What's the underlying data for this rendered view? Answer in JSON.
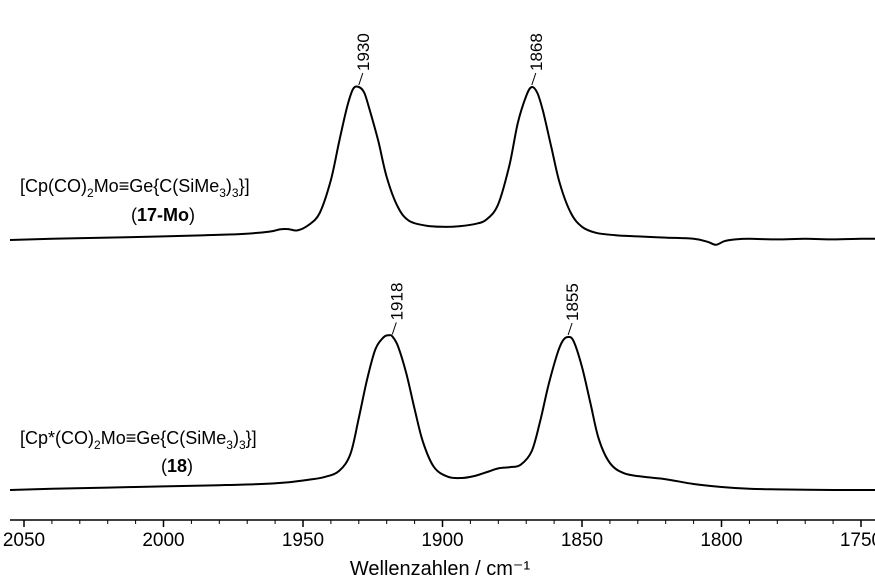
{
  "chart_data": {
    "type": "line",
    "xlabel": "Wellenzahlen / cm⁻¹",
    "xlim": [
      2055,
      1745
    ],
    "x_reversed": true,
    "x_ticks": [
      2050,
      2000,
      1950,
      1900,
      1850,
      1800,
      1750
    ],
    "x_tick_labels": [
      "2050",
      "2000",
      "1950",
      "1900",
      "1850",
      "1800",
      "1750"
    ],
    "y_axis_shown": false,
    "grid": false,
    "series": [
      {
        "name": "[Cp(CO)2Mo≡Ge{C(SiMe3)3}] (17-Mo)",
        "label_line1": {
          "a": "[Cp(CO)",
          "b": "2",
          "c": "Mo≡Ge{C(SiMe",
          "d": "3",
          "e": ")",
          "f": "3",
          "g": "}]"
        },
        "label_line2": {
          "open": "(",
          "bold": "17-Mo",
          "close": ")"
        },
        "peaks": [
          {
            "x": 1930,
            "label": "1930"
          },
          {
            "x": 1868,
            "label": "1868"
          }
        ],
        "x": [
          2055,
          2040,
          2020,
          2000,
          1985,
          1972,
          1962,
          1958,
          1955,
          1952,
          1948,
          1944,
          1940,
          1937,
          1934,
          1932,
          1930,
          1928,
          1926,
          1923,
          1920,
          1916,
          1912,
          1906,
          1900,
          1894,
          1888,
          1884,
          1880,
          1876,
          1873,
          1870,
          1868,
          1866,
          1864,
          1861,
          1858,
          1854,
          1850,
          1845,
          1838,
          1830,
          1820,
          1810,
          1805,
          1802,
          1799,
          1795,
          1790,
          1780,
          1770,
          1760,
          1750,
          1745
        ],
        "y": [
          0.0,
          0.02,
          0.04,
          0.06,
          0.08,
          0.1,
          0.14,
          0.18,
          0.18,
          0.16,
          0.25,
          0.45,
          1.0,
          1.65,
          2.25,
          2.52,
          2.55,
          2.45,
          2.15,
          1.65,
          1.05,
          0.55,
          0.32,
          0.24,
          0.22,
          0.23,
          0.27,
          0.35,
          0.6,
          1.25,
          1.95,
          2.4,
          2.55,
          2.45,
          2.15,
          1.55,
          0.95,
          0.45,
          0.22,
          0.12,
          0.08,
          0.06,
          0.04,
          0.02,
          -0.03,
          -0.08,
          -0.02,
          0.01,
          0.02,
          0.01,
          0.02,
          0.01,
          0.02,
          0.02
        ]
      },
      {
        "name": "[Cp*(CO)2Mo≡Ge{C(SiMe3)3}] (18)",
        "label_line1": {
          "a": "[Cp*(CO)",
          "b": "2",
          "c": "Mo≡Ge{C(SiMe",
          "d": "3",
          "e": ")",
          "f": "3",
          "g": "}]"
        },
        "label_line2": {
          "open": "(",
          "bold": "18",
          "close": ")"
        },
        "peaks": [
          {
            "x": 1918,
            "label": "1918"
          },
          {
            "x": 1855,
            "label": "1855"
          }
        ],
        "x": [
          2055,
          2040,
          2020,
          2000,
          1980,
          1965,
          1955,
          1948,
          1942,
          1937,
          1933,
          1930,
          1927,
          1924,
          1921,
          1919,
          1918,
          1916,
          1913,
          1910,
          1907,
          1903,
          1898,
          1893,
          1888,
          1884,
          1880,
          1876,
          1872,
          1868,
          1865,
          1862,
          1859,
          1857,
          1855,
          1853,
          1850,
          1847,
          1844,
          1840,
          1835,
          1828,
          1820,
          1810,
          1800,
          1790,
          1780,
          1760,
          1745
        ],
        "y": [
          0.0,
          0.02,
          0.04,
          0.06,
          0.08,
          0.1,
          0.13,
          0.17,
          0.22,
          0.32,
          0.6,
          1.2,
          1.85,
          2.35,
          2.55,
          2.58,
          2.56,
          2.4,
          1.95,
          1.35,
          0.8,
          0.38,
          0.22,
          0.2,
          0.24,
          0.3,
          0.36,
          0.38,
          0.42,
          0.65,
          1.15,
          1.75,
          2.25,
          2.48,
          2.55,
          2.48,
          2.05,
          1.45,
          0.85,
          0.45,
          0.28,
          0.22,
          0.18,
          0.1,
          0.05,
          0.02,
          0.01,
          0.0,
          0.0
        ]
      }
    ]
  }
}
